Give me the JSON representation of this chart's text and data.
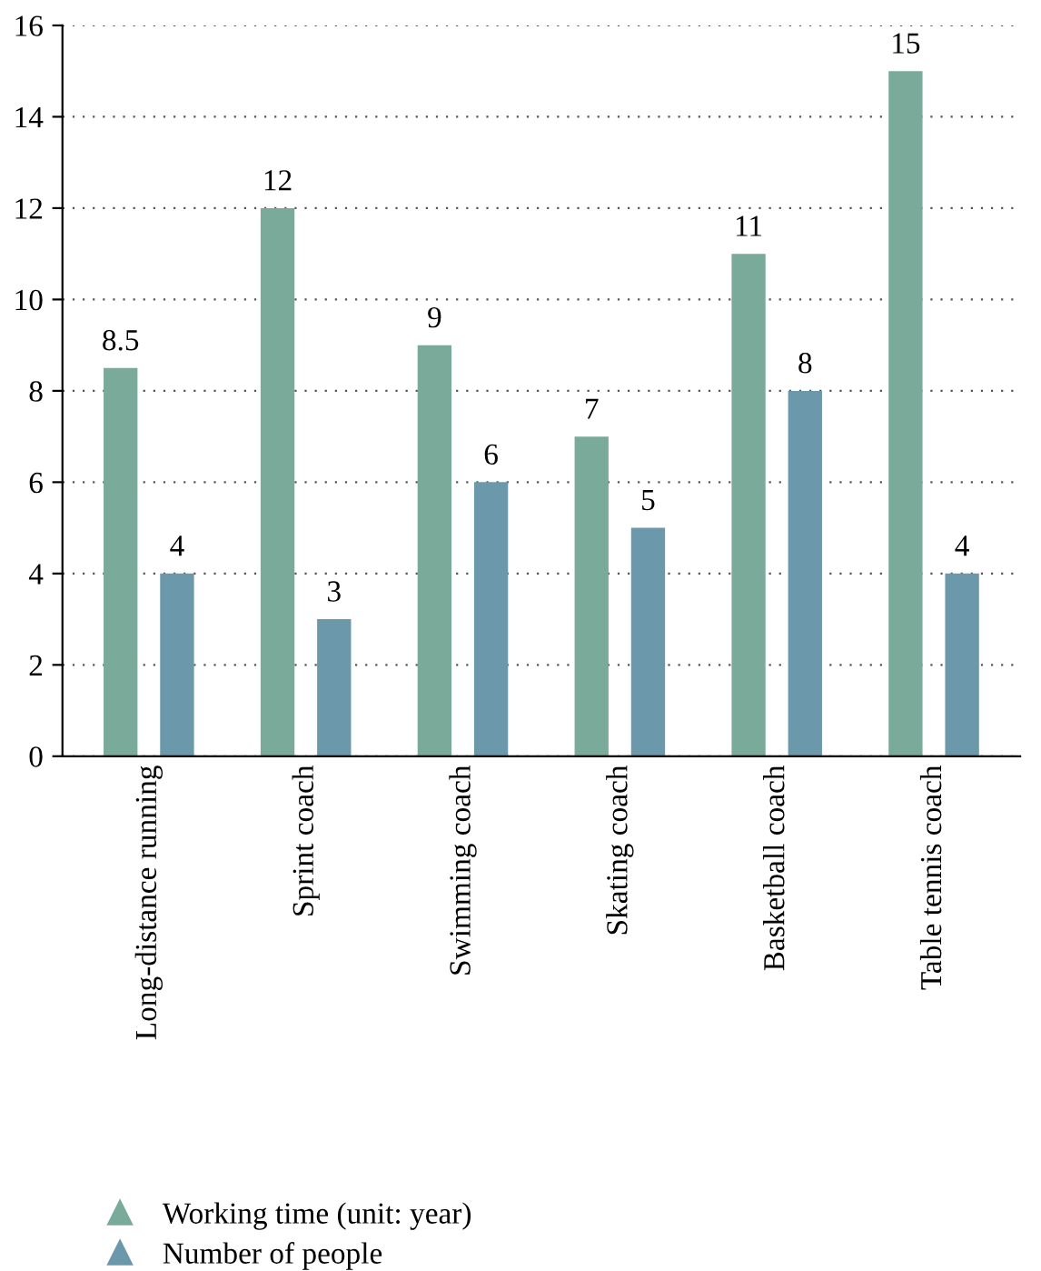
{
  "chart_data": {
    "type": "bar",
    "categories": [
      "Long-distance running",
      "Sprint coach",
      "Swimming coach",
      "Skating coach",
      "Basketball coach",
      "Table tennis coach"
    ],
    "series": [
      {
        "name": "Working time (unit: year)",
        "color": "#7aab9a",
        "values": [
          8.5,
          12,
          9,
          7,
          11,
          15
        ]
      },
      {
        "name": "Number of people",
        "color": "#6b98aa",
        "values": [
          4,
          3,
          6,
          5,
          8,
          4
        ]
      }
    ],
    "ylim": [
      0,
      16
    ],
    "yticks": [
      0,
      2,
      4,
      6,
      8,
      10,
      12,
      14,
      16
    ],
    "grid": "y",
    "legend": "bottom left",
    "data_labels": true
  }
}
